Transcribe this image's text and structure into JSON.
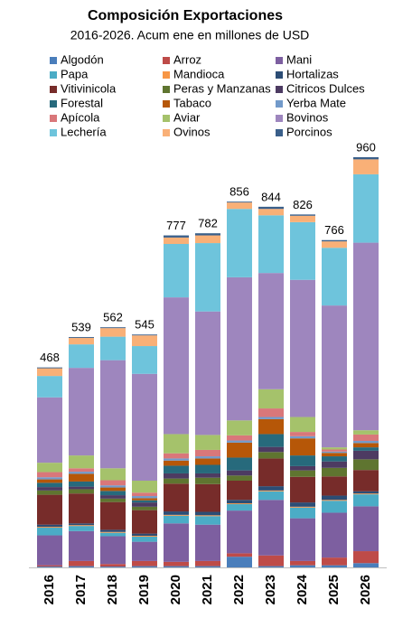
{
  "chart_data": {
    "type": "stacked_bar",
    "title": "Composición Exportaciones",
    "subtitle": "2016-2026. Acum ene en millones de USD",
    "categories": [
      "2016",
      "2017",
      "2018",
      "2019",
      "2020",
      "2021",
      "2022",
      "2023",
      "2024",
      "2025",
      "2026"
    ],
    "totals": [
      468,
      539,
      562,
      545,
      777,
      782,
      856,
      844,
      826,
      766,
      960
    ],
    "series": [
      {
        "name": "Algodón",
        "color": "#4a7ebb",
        "values": [
          2,
          3,
          2,
          3,
          3,
          3,
          25,
          3,
          5,
          5,
          10
        ]
      },
      {
        "name": "Arroz",
        "color": "#be4b48",
        "values": [
          3,
          12,
          6,
          12,
          10,
          12,
          8,
          25,
          10,
          18,
          28
        ]
      },
      {
        "name": "Mani",
        "color": "#7d5fa0",
        "values": [
          70,
          70,
          65,
          45,
          90,
          85,
          100,
          130,
          100,
          105,
          105
        ]
      },
      {
        "name": "Papa",
        "color": "#4bacc6",
        "values": [
          18,
          12,
          8,
          12,
          18,
          20,
          15,
          20,
          25,
          28,
          28
        ]
      },
      {
        "name": "Mandioca",
        "color": "#f79646",
        "values": [
          2,
          2,
          2,
          2,
          2,
          2,
          2,
          2,
          2,
          2,
          2
        ]
      },
      {
        "name": "Hortalizas",
        "color": "#2c4d75",
        "values": [
          5,
          4,
          5,
          5,
          8,
          8,
          8,
          10,
          10,
          10,
          5
        ]
      },
      {
        "name": "Vitivinicola",
        "color": "#772c2a",
        "values": [
          70,
          70,
          65,
          55,
          65,
          65,
          45,
          65,
          60,
          45,
          50
        ]
      },
      {
        "name": "Peras y Manzanas",
        "color": "#5f7530",
        "values": [
          10,
          10,
          8,
          8,
          12,
          15,
          12,
          15,
          15,
          20,
          25
        ]
      },
      {
        "name": "Citricos Dulces",
        "color": "#4d3b62",
        "values": [
          8,
          6,
          8,
          10,
          12,
          10,
          12,
          12,
          10,
          15,
          20
        ]
      },
      {
        "name": "Forestal",
        "color": "#276a7c",
        "values": [
          10,
          12,
          10,
          5,
          18,
          20,
          30,
          30,
          25,
          12,
          8
        ]
      },
      {
        "name": "Tabaco",
        "color": "#b65708",
        "values": [
          8,
          18,
          8,
          5,
          12,
          15,
          35,
          35,
          40,
          8,
          10
        ]
      },
      {
        "name": "Yerba Mate",
        "color": "#729aca",
        "values": [
          5,
          5,
          5,
          5,
          5,
          5,
          5,
          5,
          5,
          3,
          5
        ]
      },
      {
        "name": "Apícola",
        "color": "#d9777a",
        "values": [
          12,
          8,
          12,
          8,
          12,
          15,
          12,
          20,
          10,
          5,
          15
        ]
      },
      {
        "name": "Aviar",
        "color": "#a5c26b",
        "values": [
          22,
          30,
          28,
          28,
          45,
          35,
          35,
          45,
          35,
          5,
          10
        ]
      },
      {
        "name": "Bovinos",
        "color": "#9e86be",
        "values": [
          153,
          205,
          253,
          250,
          320,
          289,
          335,
          272,
          321,
          332,
          439
        ]
      },
      {
        "name": "Lechería",
        "color": "#6ec4dc",
        "values": [
          50,
          55,
          55,
          65,
          125,
          160,
          160,
          135,
          135,
          135,
          160
        ]
      },
      {
        "name": "Ovinos",
        "color": "#f9b077",
        "values": [
          18,
          15,
          20,
          25,
          15,
          18,
          15,
          15,
          15,
          15,
          35
        ]
      },
      {
        "name": "Porcinos",
        "color": "#3a5f8a",
        "values": [
          2,
          2,
          2,
          2,
          5,
          5,
          2,
          5,
          3,
          3,
          5
        ]
      }
    ]
  }
}
